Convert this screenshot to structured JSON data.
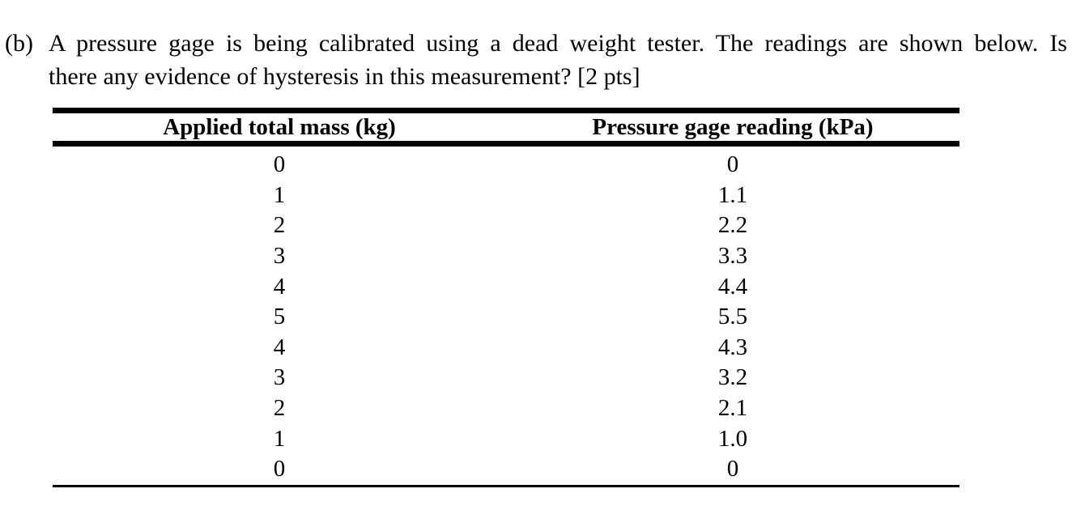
{
  "question": {
    "label": "(b)",
    "line1": "A pressure gage is being calibrated using a dead weight tester. The readings are shown below. Is",
    "line2": "there any evidence of hysteresis in this measurement? [2 pts]"
  },
  "table": {
    "headers": [
      "Applied total mass (kg)",
      "Pressure gage reading (kPa)"
    ],
    "rows": [
      {
        "mass": "0",
        "pressure": "0"
      },
      {
        "mass": "1",
        "pressure": "1.1"
      },
      {
        "mass": "2",
        "pressure": "2.2"
      },
      {
        "mass": "3",
        "pressure": "3.3"
      },
      {
        "mass": "4",
        "pressure": "4.4"
      },
      {
        "mass": "5",
        "pressure": "5.5"
      },
      {
        "mass": "4",
        "pressure": "4.3"
      },
      {
        "mass": "3",
        "pressure": "3.2"
      },
      {
        "mass": "2",
        "pressure": "2.1"
      },
      {
        "mass": "1",
        "pressure": "1.0"
      },
      {
        "mass": "0",
        "pressure": "0"
      }
    ]
  },
  "colors": {
    "text": "#000000",
    "background": "#ffffff",
    "table_rule": "#000000"
  }
}
